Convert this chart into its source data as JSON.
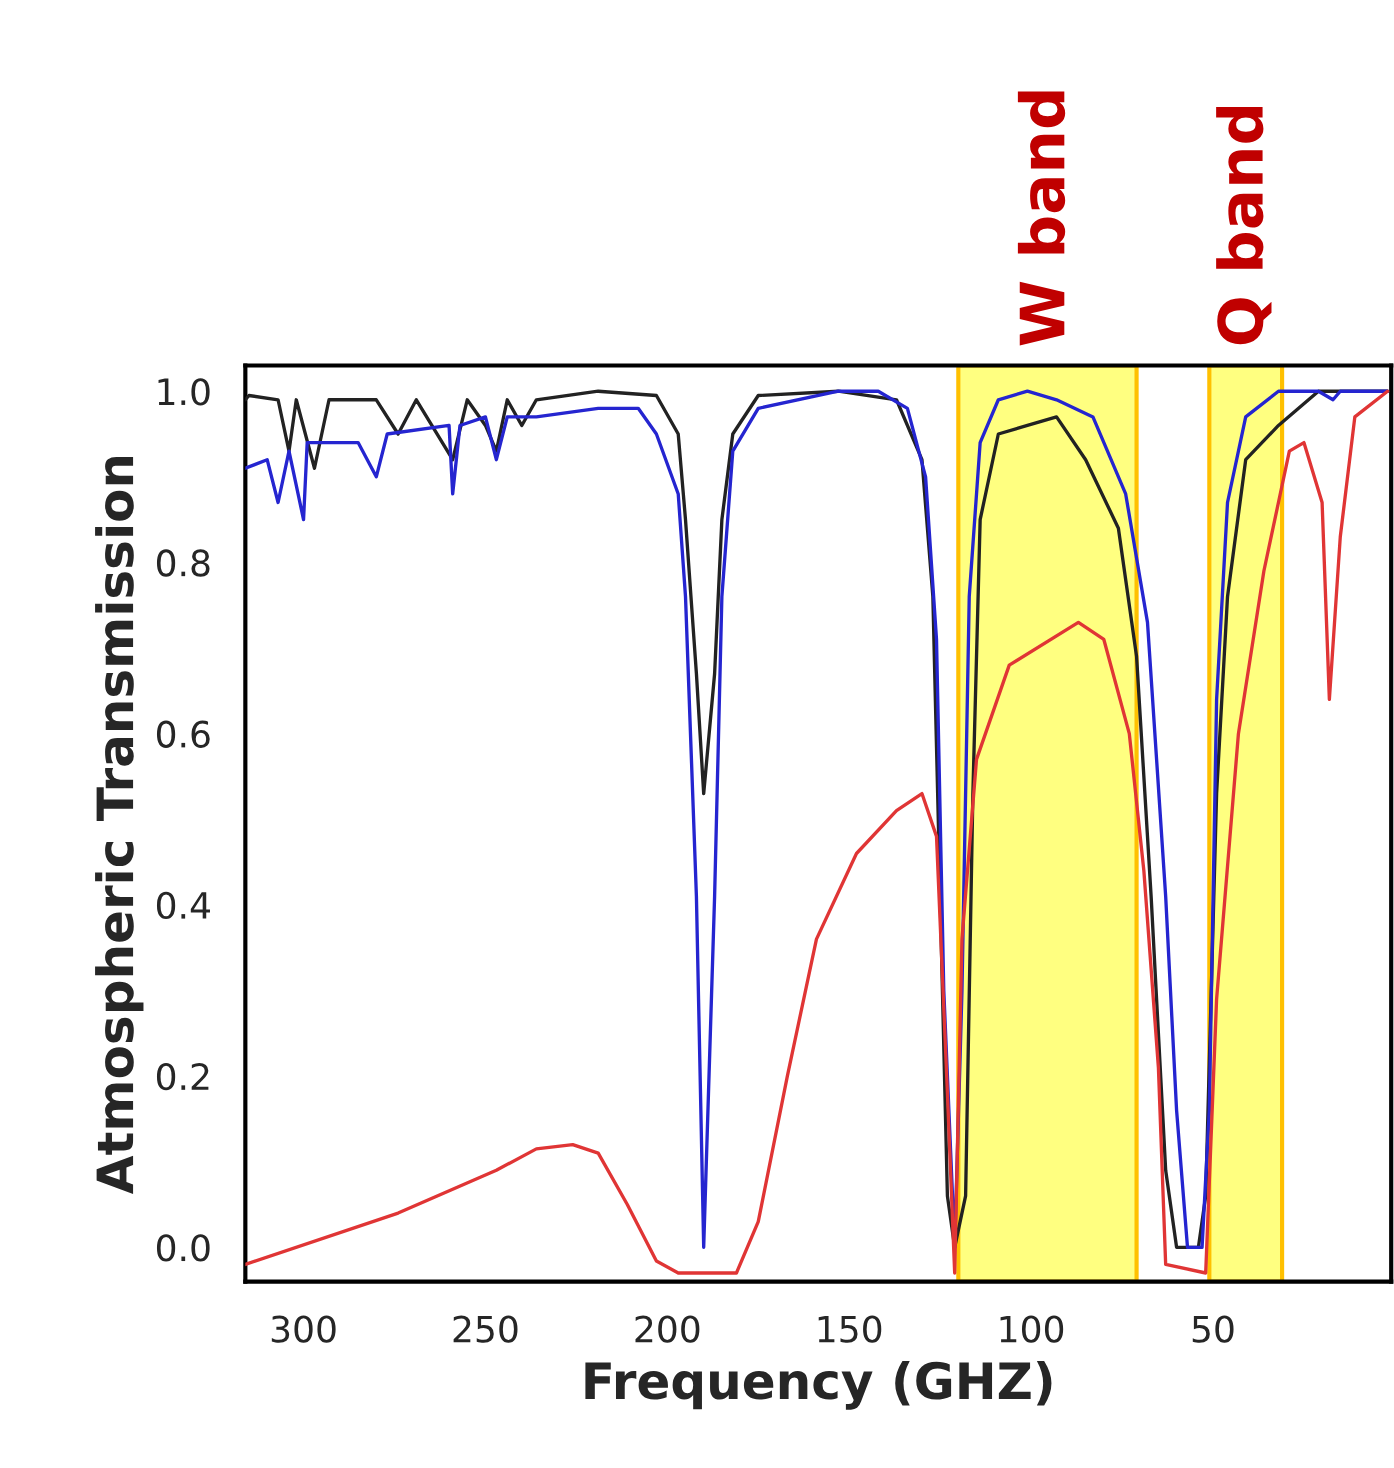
{
  "chart_data": {
    "type": "line",
    "xlabel": "Frequency (GHZ)",
    "ylabel": "Atmospheric Transmission",
    "xlim": [
      316,
      1
    ],
    "xticks": [
      300,
      250,
      200,
      150,
      100,
      50
    ],
    "ylim": [
      -0.04,
      1.03
    ],
    "yticks": [
      {
        "value": 0,
        "label": "0.0"
      },
      0.2,
      0.4,
      0.6,
      0.8,
      {
        "value": 1,
        "label": "1.0"
      }
    ],
    "grid": false,
    "legend": false,
    "line_style": "solid",
    "marker": "none",
    "bands": [
      {
        "axis": "x",
        "from": 120,
        "to": 71,
        "label": "W band",
        "color": "#ffff80"
      },
      {
        "axis": "x",
        "from": 51,
        "to": 31,
        "label": "Q band",
        "color": "#ffff80"
      }
    ],
    "series": [
      {
        "color": "#222222",
        "x": [
          316,
          315,
          307,
          304,
          302,
          297,
          293,
          280,
          274,
          269,
          259,
          255,
          250,
          247,
          244,
          240,
          236,
          219,
          203,
          197,
          195,
          192,
          190,
          187,
          185,
          182,
          175,
          153,
          137,
          130,
          127,
          125,
          123,
          121,
          118,
          116,
          114,
          109,
          101,
          93,
          85,
          76,
          71,
          67,
          63,
          60,
          54,
          52,
          49,
          46,
          41,
          32,
          21,
          2
        ],
        "values": [
          0.99,
          0.995,
          0.99,
          0.93,
          0.99,
          0.91,
          0.99,
          0.99,
          0.95,
          0.99,
          0.92,
          0.99,
          0.96,
          0.93,
          0.99,
          0.96,
          0.99,
          1.0,
          0.995,
          0.95,
          0.85,
          0.67,
          0.53,
          0.67,
          0.85,
          0.95,
          0.995,
          1.0,
          0.99,
          0.92,
          0.76,
          0.41,
          0.06,
          0,
          0.06,
          0.53,
          0.85,
          0.95,
          0.96,
          0.97,
          0.92,
          0.84,
          0.69,
          0.41,
          0.09,
          0,
          0,
          0.06,
          0.53,
          0.76,
          0.92,
          0.96,
          1.0,
          1.0
        ]
      },
      {
        "color": "#2525d0",
        "x": [
          316,
          310,
          307,
          304,
          300,
          299,
          285,
          280,
          277,
          260,
          259,
          257,
          250,
          247,
          244,
          236,
          219,
          208,
          203,
          197,
          195,
          192,
          190,
          187,
          185,
          182,
          175,
          153,
          142,
          134,
          129,
          126,
          124,
          121,
          119,
          117,
          114,
          109,
          101,
          93,
          83,
          74,
          68,
          63,
          60,
          57,
          53,
          51,
          49,
          46,
          41,
          32,
          21,
          17,
          15,
          2
        ],
        "values": [
          0.91,
          0.92,
          0.87,
          0.93,
          0.85,
          0.94,
          0.94,
          0.9,
          0.95,
          0.96,
          0.88,
          0.96,
          0.97,
          0.92,
          0.97,
          0.97,
          0.98,
          0.98,
          0.95,
          0.88,
          0.76,
          0.41,
          0,
          0.41,
          0.76,
          0.93,
          0.98,
          1.0,
          1.0,
          0.98,
          0.9,
          0.71,
          0.3,
          0,
          0.3,
          0.76,
          0.94,
          0.99,
          1.0,
          0.99,
          0.97,
          0.88,
          0.73,
          0.41,
          0.16,
          0,
          0,
          0.16,
          0.64,
          0.87,
          0.97,
          1.0,
          1.0,
          0.99,
          1.0,
          1.0
        ]
      },
      {
        "color": "#e03535",
        "x": [
          316,
          274,
          247,
          236,
          226,
          219,
          211,
          203,
          197,
          181,
          175,
          167,
          159,
          148,
          137,
          130,
          126,
          123,
          121,
          119,
          115,
          106,
          87,
          80,
          73,
          69,
          65,
          63,
          52,
          49,
          43,
          36,
          29,
          25,
          20,
          18,
          15,
          11,
          2
        ],
        "values": [
          -0.02,
          0.04,
          0.09,
          0.115,
          0.12,
          0.11,
          0.05,
          -0.016,
          -0.03,
          -0.03,
          0.03,
          0.2,
          0.36,
          0.46,
          0.51,
          0.53,
          0.48,
          0.18,
          -0.03,
          0.36,
          0.57,
          0.68,
          0.73,
          0.71,
          0.6,
          0.44,
          0.21,
          -0.02,
          -0.03,
          0.29,
          0.6,
          0.79,
          0.93,
          0.94,
          0.87,
          0.64,
          0.83,
          0.97,
          1.0
        ]
      }
    ]
  }
}
